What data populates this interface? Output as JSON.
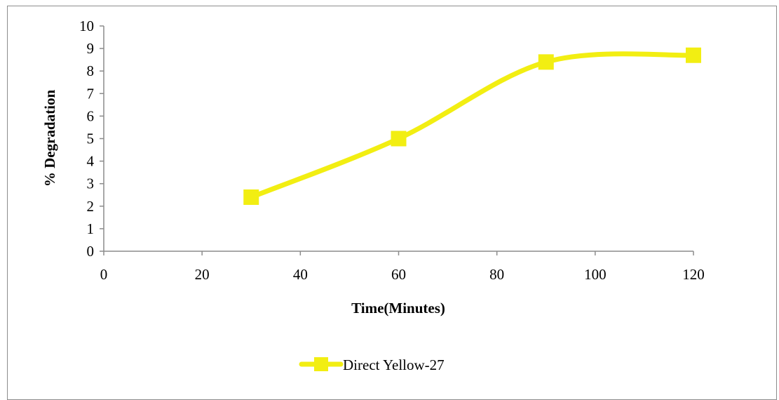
{
  "chart_data": {
    "type": "line",
    "x": [
      30,
      60,
      90,
      120
    ],
    "series": [
      {
        "name": "Direct Yellow-27",
        "values": [
          2.4,
          5.0,
          8.4,
          8.7
        ],
        "color": "#f2ee12"
      }
    ],
    "xlabel": "Time(Minutes)",
    "ylabel": "% Degradation",
    "xlim": [
      0,
      120
    ],
    "ylim": [
      0,
      10
    ],
    "xticks": [
      0,
      20,
      40,
      60,
      80,
      100,
      120
    ],
    "yticks": [
      0,
      1,
      2,
      3,
      4,
      5,
      6,
      7,
      8,
      9,
      10
    ],
    "smooth": true,
    "markers": "square",
    "grid": false,
    "legend": "bottom-center"
  }
}
